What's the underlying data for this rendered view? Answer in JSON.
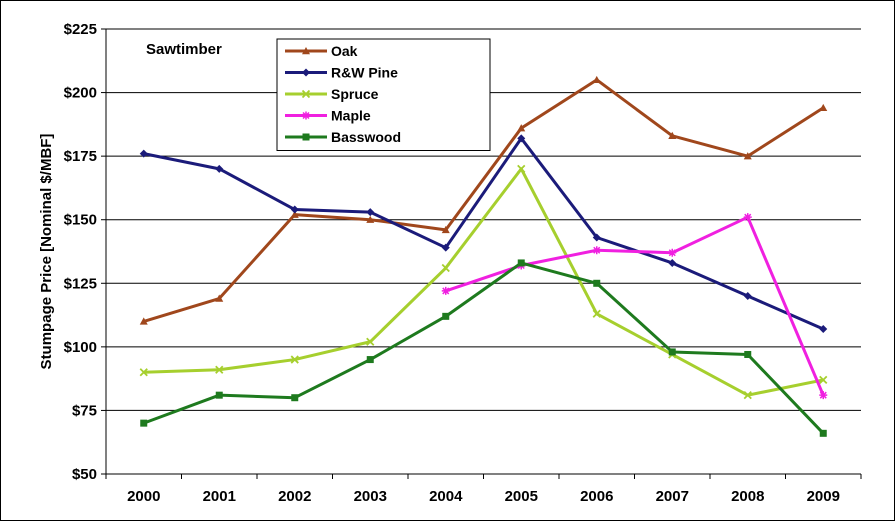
{
  "chart_data": {
    "type": "line",
    "title": "",
    "annotation": "Sawtimber",
    "xlabel": "",
    "ylabel": "Stumpage Price [Nominal $/MBF]",
    "x": [
      "2000",
      "2001",
      "2002",
      "2003",
      "2004",
      "2005",
      "2006",
      "2007",
      "2008",
      "2009"
    ],
    "ylim": [
      50,
      225
    ],
    "y_ticks": [
      50,
      75,
      100,
      125,
      150,
      175,
      200,
      225
    ],
    "y_tick_labels": [
      "$50",
      "$75",
      "$100",
      "$125",
      "$150",
      "$175",
      "$200",
      "$225"
    ],
    "grid": "horizontal",
    "legend_position": "top-left",
    "series": [
      {
        "name": "Oak",
        "color": "#A0471C",
        "marker": "triangle",
        "values": [
          110,
          119,
          152,
          150,
          146,
          186,
          205,
          183,
          175,
          194
        ]
      },
      {
        "name": "R&W Pine",
        "color": "#1B1B7A",
        "marker": "diamond",
        "values": [
          176,
          170,
          154,
          153,
          139,
          182,
          143,
          133,
          120,
          107
        ]
      },
      {
        "name": "Spruce",
        "color": "#A6CF2E",
        "marker": "x",
        "values": [
          90,
          91,
          95,
          102,
          131,
          170,
          113,
          97,
          81,
          87
        ]
      },
      {
        "name": "Maple",
        "color": "#F020E0",
        "marker": "star",
        "values": [
          null,
          null,
          null,
          null,
          122,
          132,
          138,
          137,
          151,
          81
        ]
      },
      {
        "name": "Basswood",
        "color": "#1E7A1E",
        "marker": "square",
        "values": [
          70,
          81,
          80,
          95,
          112,
          133,
          125,
          98,
          97,
          66
        ]
      }
    ]
  }
}
